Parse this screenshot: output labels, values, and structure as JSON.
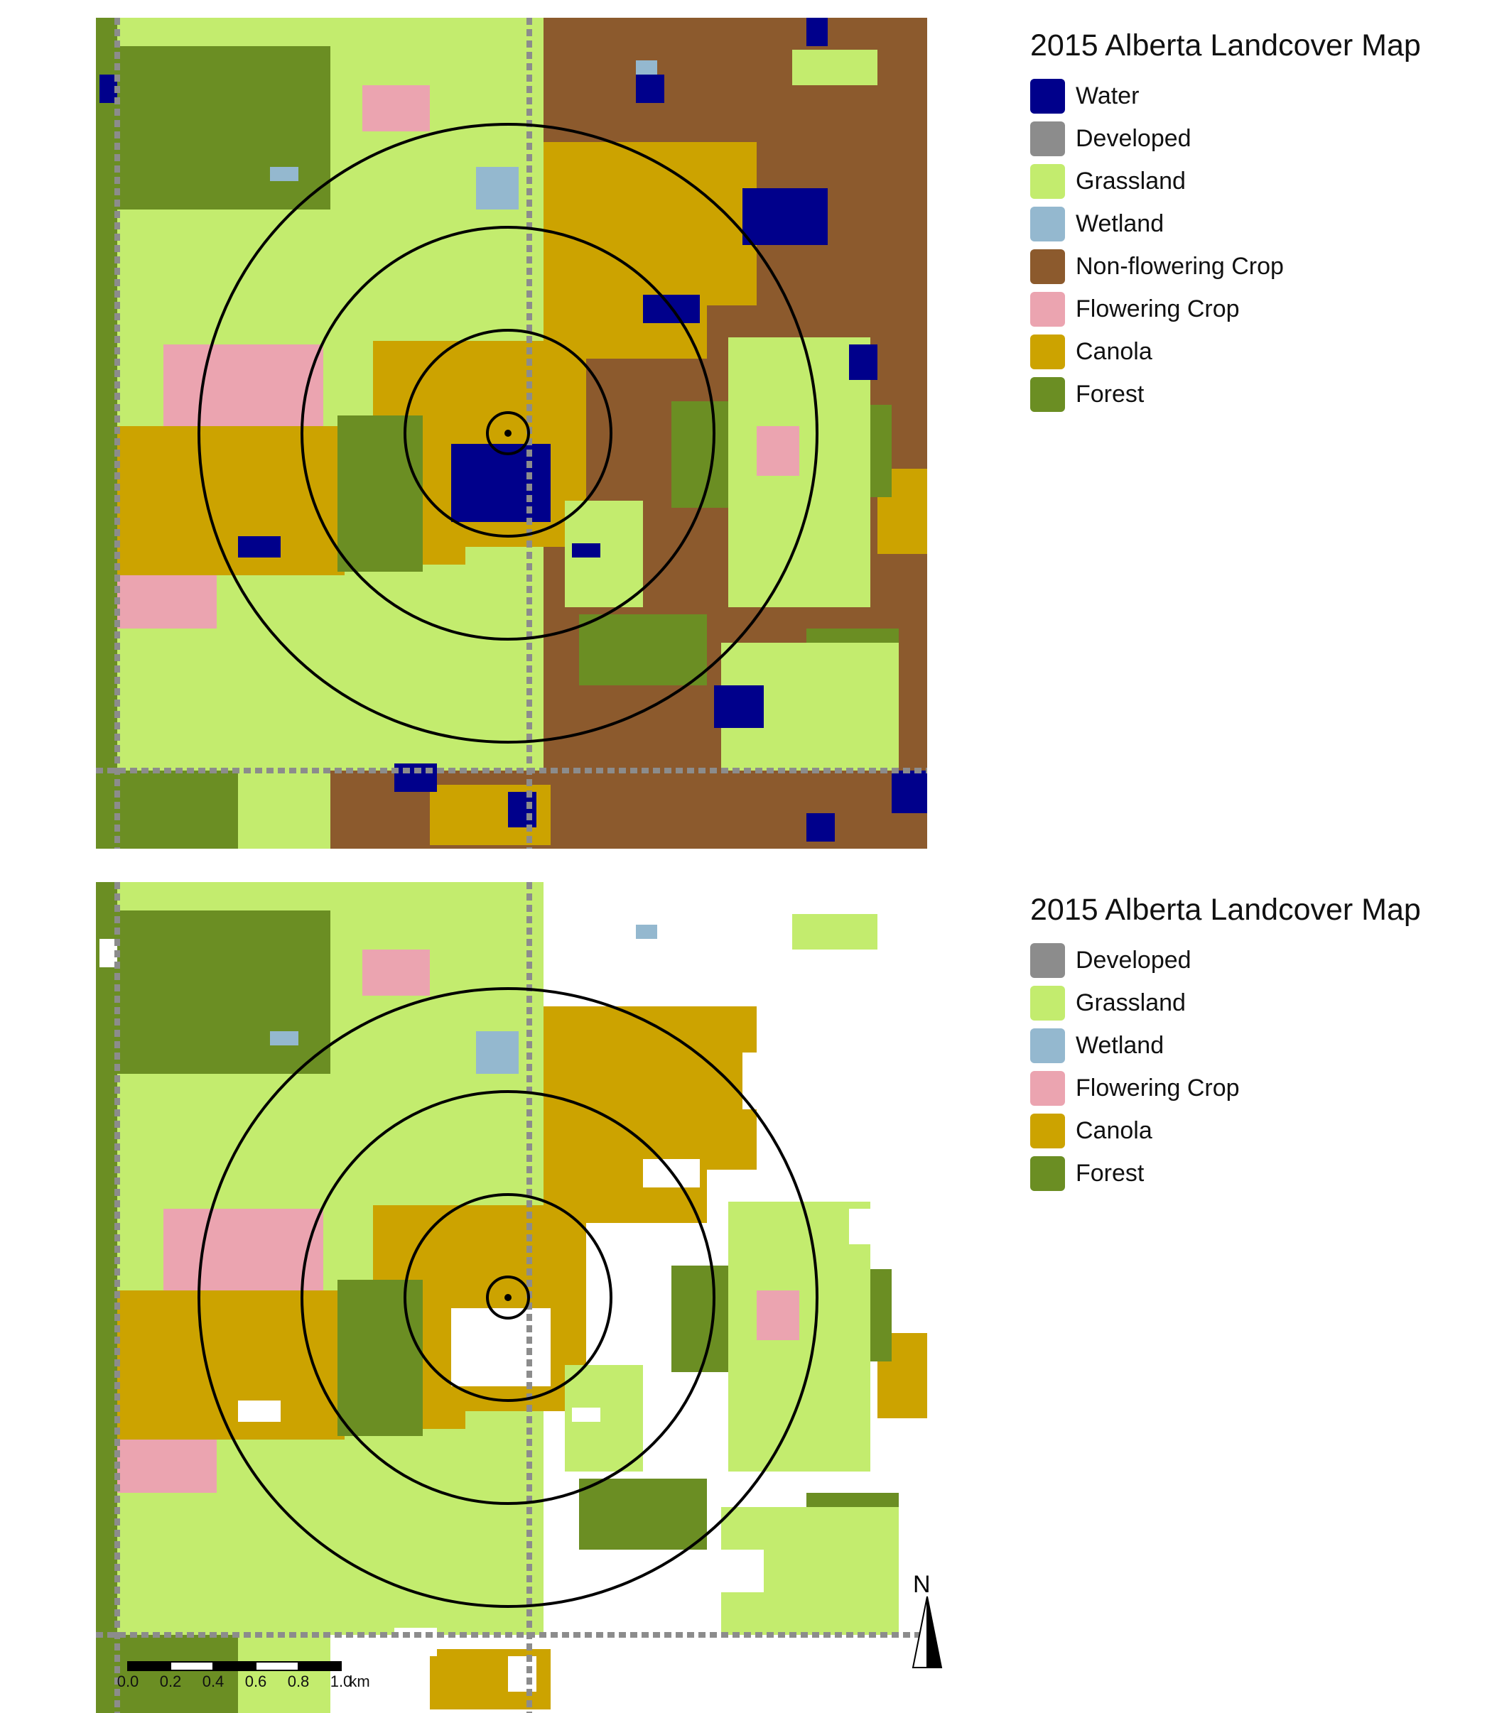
{
  "colors": {
    "Water": "#00008b",
    "Developed": "#8c8c8c",
    "Grassland": "#c3ec6e",
    "Wetland": "#94b8cf",
    "Non-flowering Crop": "#8c5a2d",
    "Flowering Crop": "#eba4b0",
    "Canola": "#cca300",
    "Forest": "#6b8e23",
    "Masked": "#ffffff"
  },
  "maps": [
    {
      "legend": {
        "title": "2015 Alberta Landcover Map",
        "items": [
          {
            "label": "Water",
            "color": "#00008b"
          },
          {
            "label": "Developed",
            "color": "#8c8c8c"
          },
          {
            "label": "Grassland",
            "color": "#c3ec6e"
          },
          {
            "label": "Wetland",
            "color": "#94b8cf"
          },
          {
            "label": "Non-flowering Crop",
            "color": "#8c5a2d"
          },
          {
            "label": "Flowering Crop",
            "color": "#eba4b0"
          },
          {
            "label": "Canola",
            "color": "#cca300"
          },
          {
            "label": "Forest",
            "color": "#6b8e23"
          }
        ]
      },
      "masked_classes": []
    },
    {
      "legend": {
        "title": "2015 Alberta Landcover Map",
        "items": [
          {
            "label": "Developed",
            "color": "#8c8c8c"
          },
          {
            "label": "Grassland",
            "color": "#c3ec6e"
          },
          {
            "label": "Wetland",
            "color": "#94b8cf"
          },
          {
            "label": "Flowering Crop",
            "color": "#eba4b0"
          },
          {
            "label": "Canola",
            "color": "#cca300"
          },
          {
            "label": "Forest",
            "color": "#6b8e23"
          }
        ]
      },
      "masked_classes": [
        "Water",
        "Non-flowering Crop"
      ]
    }
  ],
  "buffer_rings_km": [
    0.1,
    0.5,
    1.0,
    1.5
  ],
  "north_arrow": {
    "label": "N"
  },
  "scale_bar": {
    "ticks": [
      "0.0",
      "0.2",
      "0.4",
      "0.6",
      "0.8",
      "1.0"
    ],
    "unit": "km"
  }
}
